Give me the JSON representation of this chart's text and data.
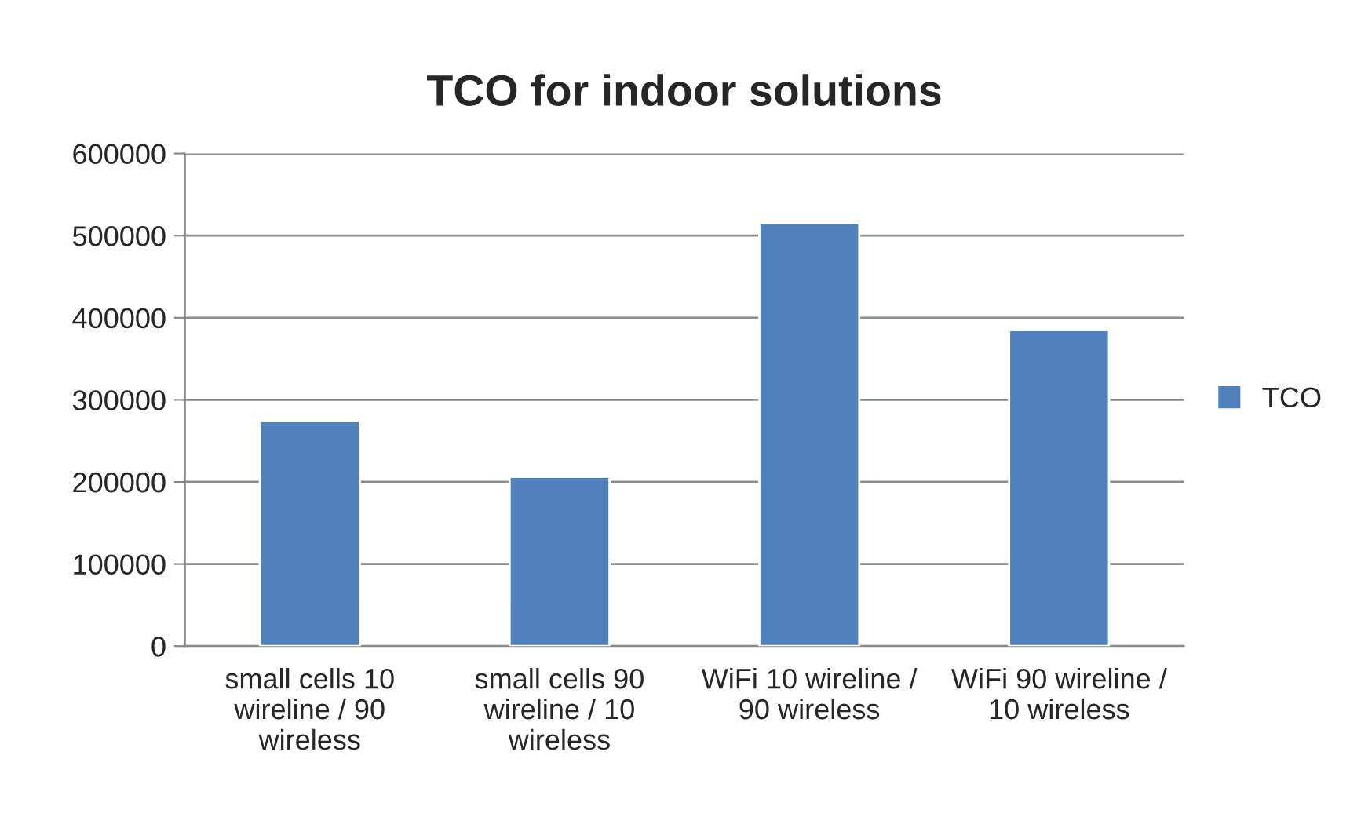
{
  "chart_data": {
    "type": "bar",
    "title": "TCO for indoor solutions",
    "categories": [
      "small cells 10 wireline / 90 wireless",
      "small cells 90 wireline / 10 wireless",
      "WiFi 10 wireline / 90 wireless",
      "WiFi 90 wireline / 10 wireless"
    ],
    "series": [
      {
        "name": "TCO",
        "color": "#4f81bd",
        "values": [
          274000,
          206000,
          515000,
          385000
        ]
      }
    ],
    "ylim": [
      0,
      600000
    ],
    "yticks": [
      0,
      100000,
      200000,
      300000,
      400000,
      500000,
      600000
    ],
    "grid": "y",
    "legend": "right"
  }
}
